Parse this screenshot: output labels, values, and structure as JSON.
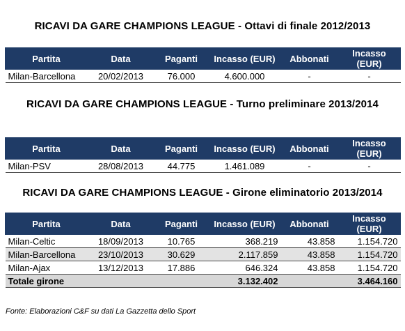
{
  "headers": [
    "Partita",
    "Data",
    "Paganti",
    "Incasso (EUR)",
    "Abbonati",
    "Incasso (EUR)"
  ],
  "sections": [
    {
      "title": "RICAVI DA GARE CHAMPIONS LEAGUE - Ottavi di finale 2012/2013",
      "rows": [
        {
          "partita": "Milan-Barcellona",
          "data": "20/02/2013",
          "paganti": "76.000",
          "incasso": "4.600.000",
          "abbonati": "-",
          "incasso_abb": "-"
        }
      ]
    },
    {
      "title": "RICAVI DA GARE CHAMPIONS LEAGUE - Turno preliminare 2013/2014",
      "rows": [
        {
          "partita": "Milan-PSV",
          "data": "28/08/2013",
          "paganti": "44.775",
          "incasso": "1.461.089",
          "abbonati": "-",
          "incasso_abb": "-"
        }
      ]
    },
    {
      "title": "RICAVI DA GARE CHAMPIONS LEAGUE - Girone eliminatorio 2013/2014",
      "rows": [
        {
          "partita": "Milan-Celtic",
          "data": "18/09/2013",
          "paganti": "10.765",
          "incasso": "368.219",
          "abbonati": "43.858",
          "incasso_abb": "1.154.720"
        },
        {
          "partita": "Milan-Barcellona",
          "data": "23/10/2013",
          "paganti": "30.629",
          "incasso": "2.117.859",
          "abbonati": "43.858",
          "incasso_abb": "1.154.720"
        },
        {
          "partita": "Milan-Ajax",
          "data": "13/12/2013",
          "paganti": "17.886",
          "incasso": "646.324",
          "abbonati": "43.858",
          "incasso_abb": "1.154.720"
        }
      ],
      "total": {
        "label": "Totale girone",
        "incasso": "3.132.402",
        "incasso_abb": "3.464.160"
      }
    }
  ],
  "source": "Fonte: Elaborazioni C&F su dati La Gazzetta dello Sport"
}
